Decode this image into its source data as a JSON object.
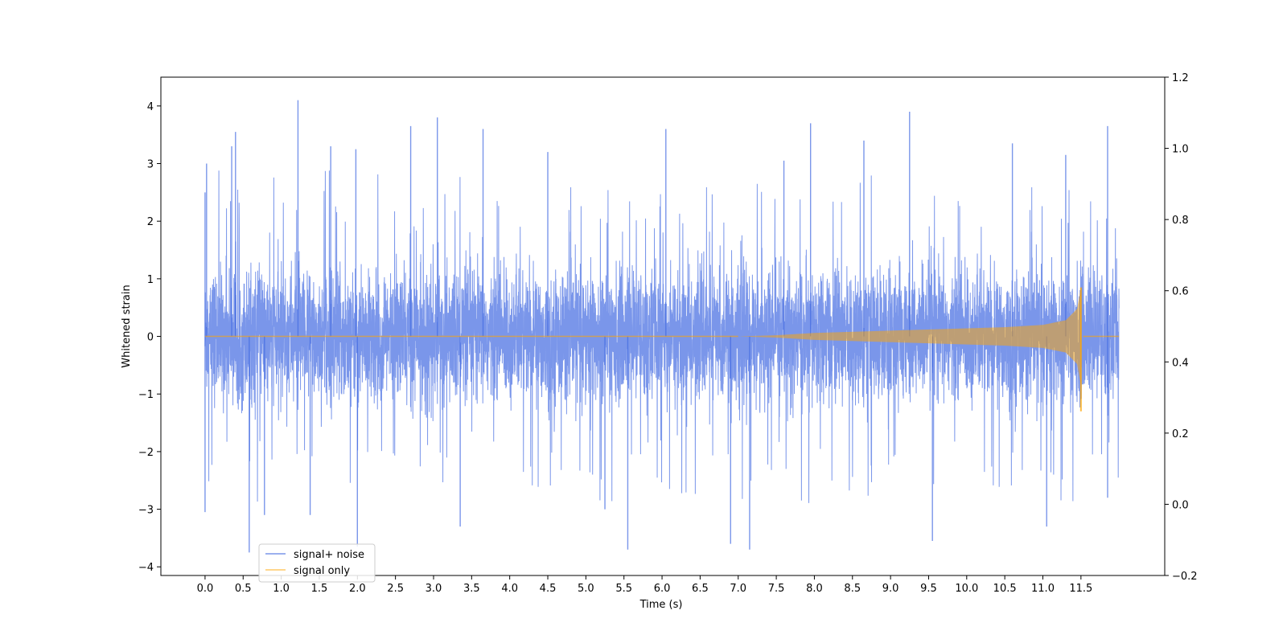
{
  "chart_data": {
    "type": "line",
    "title": "",
    "xlabel": "Time (s)",
    "ylabel": "Whitened strain",
    "y2label": "",
    "xlim": [
      -0.58,
      12.6
    ],
    "ylim": [
      -4.15,
      4.5
    ],
    "y2lim": [
      -0.2,
      1.2
    ],
    "x_ticks": [
      0.0,
      0.5,
      1.0,
      1.5,
      2.0,
      2.5,
      3.0,
      3.5,
      4.0,
      4.5,
      5.0,
      5.5,
      6.0,
      6.5,
      7.0,
      7.5,
      8.0,
      8.5,
      9.0,
      9.5,
      10.0,
      10.5,
      11.0,
      11.5
    ],
    "x_tick_labels": [
      "0.0",
      "0.5",
      "1.0",
      "1.5",
      "2.0",
      "2.5",
      "3.0",
      "3.5",
      "4.0",
      "4.5",
      "5.0",
      "5.5",
      "6.0",
      "6.5",
      "7.0",
      "7.5",
      "8.0",
      "8.5",
      "9.0",
      "9.5",
      "10.0",
      "10.5",
      "11.0",
      "11.5"
    ],
    "y_ticks": [
      -4,
      -3,
      -2,
      -1,
      0,
      1,
      2,
      3,
      4
    ],
    "y_tick_labels": [
      "−4",
      "−3",
      "−2",
      "−1",
      "0",
      "1",
      "2",
      "3",
      "4"
    ],
    "y2_ticks": [
      -0.2,
      0.0,
      0.2,
      0.4,
      0.6,
      0.8,
      1.0,
      1.2
    ],
    "y2_tick_labels": [
      "−0.2",
      "0.0",
      "0.2",
      "0.4",
      "0.6",
      "0.8",
      "1.0",
      "1.2"
    ],
    "grid": false,
    "legend_position": "lower-left",
    "series": [
      {
        "name": "signal+ noise",
        "color": "#4169e1",
        "opacity": 0.7,
        "description_kind": "gaussian-noise",
        "x_range": [
          0.0,
          12.0
        ],
        "typical_abs_peak": 2.0,
        "max": 4.1,
        "min": -3.8,
        "extreme_points": [
          {
            "x": 0.0,
            "y": 2.5
          },
          {
            "x": 0.0,
            "y": -3.05
          },
          {
            "x": 0.02,
            "y": 3.0
          },
          {
            "x": 0.35,
            "y": 3.3
          },
          {
            "x": 0.4,
            "y": 3.55
          },
          {
            "x": 0.58,
            "y": -3.75
          },
          {
            "x": 0.78,
            "y": -3.1
          },
          {
            "x": 1.22,
            "y": 4.1
          },
          {
            "x": 1.38,
            "y": -3.1
          },
          {
            "x": 1.65,
            "y": 3.3
          },
          {
            "x": 1.98,
            "y": 3.25
          },
          {
            "x": 2.0,
            "y": -3.65
          },
          {
            "x": 2.7,
            "y": 3.65
          },
          {
            "x": 3.05,
            "y": 3.8
          },
          {
            "x": 3.35,
            "y": -3.3
          },
          {
            "x": 3.65,
            "y": 3.6
          },
          {
            "x": 4.5,
            "y": 3.2
          },
          {
            "x": 5.25,
            "y": -3.0
          },
          {
            "x": 5.55,
            "y": -3.7
          },
          {
            "x": 6.05,
            "y": 3.6
          },
          {
            "x": 6.9,
            "y": -3.6
          },
          {
            "x": 7.15,
            "y": -3.7
          },
          {
            "x": 7.6,
            "y": 3.05
          },
          {
            "x": 7.95,
            "y": 3.7
          },
          {
            "x": 8.65,
            "y": 3.4
          },
          {
            "x": 9.25,
            "y": 3.9
          },
          {
            "x": 9.55,
            "y": -3.55
          },
          {
            "x": 10.6,
            "y": 3.35
          },
          {
            "x": 11.05,
            "y": -3.3
          },
          {
            "x": 11.3,
            "y": 3.15
          },
          {
            "x": 11.85,
            "y": 3.65
          },
          {
            "x": 11.85,
            "y": -2.8
          }
        ]
      },
      {
        "name": "signal only",
        "color": "#ffa500",
        "opacity": 0.5,
        "description_kind": "chirp",
        "x_range": [
          0.0,
          12.0
        ],
        "amplitude_envelope": [
          {
            "x": 0.0,
            "y": 0.0
          },
          {
            "x": 7.0,
            "y": 0.0
          },
          {
            "x": 7.5,
            "y": 0.02
          },
          {
            "x": 8.0,
            "y": 0.06
          },
          {
            "x": 9.0,
            "y": 0.1
          },
          {
            "x": 10.0,
            "y": 0.14
          },
          {
            "x": 10.5,
            "y": 0.16
          },
          {
            "x": 11.0,
            "y": 0.2
          },
          {
            "x": 11.3,
            "y": 0.28
          },
          {
            "x": 11.45,
            "y": 0.48
          },
          {
            "x": 11.5,
            "y": 0.85
          },
          {
            "x": 11.52,
            "y": -1.3
          },
          {
            "x": 11.53,
            "y": 0.0
          },
          {
            "x": 12.0,
            "y": 0.0
          }
        ]
      }
    ]
  }
}
